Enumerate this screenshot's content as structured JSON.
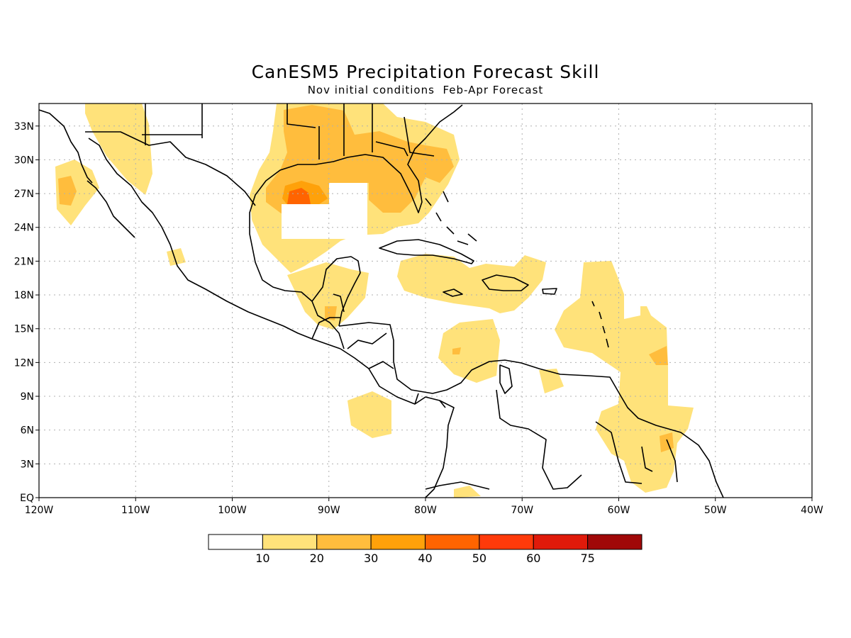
{
  "title": "CanESM5 Precipitation Forecast Skill",
  "subtitle": "Nov initial conditions  Feb-Apr Forecast",
  "map": {
    "lon_range": [
      -120,
      -40
    ],
    "lat_range": [
      0,
      35
    ],
    "lat_ticks": [
      {
        "value": 33,
        "label": "33N"
      },
      {
        "value": 30,
        "label": "30N"
      },
      {
        "value": 27,
        "label": "27N"
      },
      {
        "value": 24,
        "label": "24N"
      },
      {
        "value": 21,
        "label": "21N"
      },
      {
        "value": 18,
        "label": "18N"
      },
      {
        "value": 15,
        "label": "15N"
      },
      {
        "value": 12,
        "label": "12N"
      },
      {
        "value": 9,
        "label": "9N"
      },
      {
        "value": 6,
        "label": "6N"
      },
      {
        "value": 3,
        "label": "3N"
      },
      {
        "value": 0,
        "label": "EQ"
      }
    ],
    "lon_ticks": [
      {
        "value": -120,
        "label": "120W"
      },
      {
        "value": -110,
        "label": "110W"
      },
      {
        "value": -100,
        "label": "100W"
      },
      {
        "value": -90,
        "label": "90W"
      },
      {
        "value": -80,
        "label": "80W"
      },
      {
        "value": -70,
        "label": "70W"
      },
      {
        "value": -60,
        "label": "60W"
      },
      {
        "value": -50,
        "label": "50W"
      },
      {
        "value": -40,
        "label": "40W"
      }
    ],
    "grid": true
  },
  "colorbar": {
    "colors": [
      "#ffffff",
      "#ffe27a",
      "#ffbd3d",
      "#ffa10a",
      "#ff6400",
      "#ff3a0a",
      "#e01a0a",
      "#a00808"
    ],
    "labels": [
      "10",
      "20",
      "30",
      "40",
      "50",
      "60",
      "75"
    ]
  }
}
